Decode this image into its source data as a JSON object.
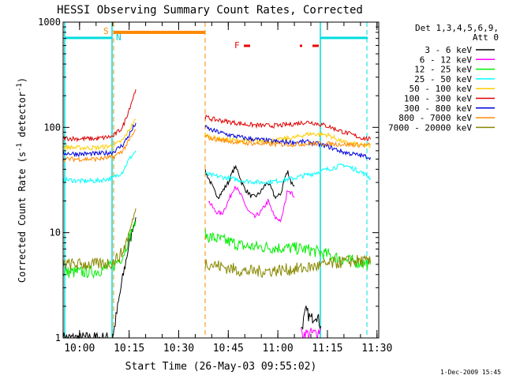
{
  "chart_data": {
    "type": "line",
    "title": "HESSI Observing Summary Count Rates, Corrected",
    "xlabel": "Start Time (26-May-03 09:55:02)",
    "ylabel": "Corrected Count Rate (s^-1 detector^-1)",
    "ylabel_parts": {
      "main": "Corrected Count Rate (s",
      "sup1": "-1",
      "mid": " detector",
      "sup2": "-1",
      "end": ")"
    },
    "footer": "1-Dec-2009 15:45",
    "y_scale": "log",
    "ylim": [
      1,
      1000
    ],
    "xlim_minutes": [
      0,
      35.5
    ],
    "x_tick_labels": [
      {
        "label": "10:00",
        "minutes": 4.97
      },
      {
        "label": "10:15",
        "minutes": 19.97
      },
      {
        "label": "10:30",
        "minutes": 34.97
      },
      {
        "label": "10:45",
        "minutes": 49.97
      },
      {
        "label": "11:00",
        "minutes": 64.97
      },
      {
        "label": "11:15",
        "minutes": 79.97
      },
      {
        "label": "11:30",
        "minutes": 94.97
      }
    ],
    "y_tick_labels": [
      {
        "label": "1",
        "value": 1
      },
      {
        "label": "10",
        "value": 10
      },
      {
        "label": "100",
        "value": 100
      },
      {
        "label": "1000",
        "value": 1000
      }
    ],
    "grid": false,
    "legend": {
      "placement": "right",
      "header": [
        "Det 1,3,4,5,6,9,",
        "Att 0"
      ]
    },
    "flag_labels": {
      "sunlight": "S",
      "night": "N",
      "flare": "F"
    },
    "series": [
      {
        "name": "3 - 6 keV",
        "color": "#000000",
        "segments": [
          {
            "x": [
              0,
              10,
              20,
              30,
              35,
              40,
              44
            ],
            "y": [
              1,
              1,
              1,
              1,
              3,
              8,
              14
            ]
          },
          {
            "x": [
              86,
              88,
              90,
              92,
              94,
              96,
              98,
              100,
              102,
              104,
              106,
              108,
              110,
              112,
              114,
              116,
              118,
              120,
              122,
              124,
              126,
              128,
              130,
              132,
              134,
              136,
              138,
              140
            ],
            "y": [
              38,
              33,
              28,
              24,
              22,
              24,
              27,
              30,
              36,
              42,
              38,
              30,
              26,
              24,
              22,
              22,
              23,
              25,
              28,
              30,
              26,
              22,
              22,
              24,
              33,
              38,
              30,
              28
            ]
          },
          {
            "x": [
              144,
              147,
              150,
              153,
              156
            ],
            "y": [
              1.2,
              1.8,
              1.5,
              1.7,
              1.3
            ]
          }
        ]
      },
      {
        "name": "6 - 12 keV",
        "color": "#ff00ff",
        "segments": [
          {
            "x": [
              88,
              92,
              96,
              100,
              104,
              108,
              112,
              116,
              120,
              124,
              128,
              132,
              136,
              140
            ],
            "y": [
              20,
              16,
              15,
              20,
              28,
              22,
              16,
              14,
              16,
              20,
              14,
              13,
              26,
              22
            ]
          },
          {
            "x": [
              144,
              152,
              156
            ],
            "y": [
              1.1,
              1.1,
              1.2
            ]
          }
        ]
      },
      {
        "name": "12 - 25 keV",
        "color": "#00ee00",
        "segments": [
          {
            "x": [
              0,
              10,
              20,
              30,
              36,
              40,
              44
            ],
            "y": [
              4.2,
              4.2,
              4.3,
              4.8,
              6,
              9,
              13
            ]
          },
          {
            "x": [
              86,
              90,
              100,
              110,
              120,
              130,
              140,
              145,
              150,
              160,
              170,
              180,
              186
            ],
            "y": [
              9.5,
              9,
              8.2,
              7.4,
              7.3,
              7.2,
              7.1,
              7,
              6.8,
              6.2,
              5.5,
              5.2,
              5
            ]
          }
        ]
      },
      {
        "name": "25 - 50 keV",
        "color": "#00ffff",
        "segments": [
          {
            "x": [
              0,
              10,
              20,
              30,
              36,
              40,
              44
            ],
            "y": [
              32,
              31,
              31,
              33,
              38,
              50,
              60
            ]
          },
          {
            "x": [
              86,
              90,
              100,
              110,
              120,
              130,
              140,
              146,
              150,
              160,
              170,
              180,
              186
            ],
            "y": [
              36,
              35,
              33,
              31,
              30,
              31,
              33,
              35,
              36,
              40,
              44,
              38,
              33
            ]
          }
        ]
      },
      {
        "name": "50 - 100 keV",
        "color": "#ffcc00",
        "segments": [
          {
            "x": [
              0,
              10,
              20,
              30,
              36,
              40,
              44
            ],
            "y": [
              65,
              64,
              64,
              67,
              75,
              95,
              120
            ]
          },
          {
            "x": [
              86,
              90,
              100,
              110,
              120,
              130,
              140,
              146,
              150,
              160,
              170,
              180,
              186
            ],
            "y": [
              85,
              80,
              76,
              74,
              74,
              76,
              80,
              85,
              87,
              85,
              72,
              68,
              66
            ]
          }
        ]
      },
      {
        "name": "100 - 300 keV",
        "color": "#dd0000",
        "segments": [
          {
            "x": [
              0,
              10,
              20,
              30,
              36,
              40,
              44
            ],
            "y": [
              79,
              78,
              78,
              82,
              100,
              150,
              230
            ]
          },
          {
            "x": [
              86,
              90,
              100,
              110,
              120,
              130,
              140,
              146,
              150,
              160,
              170,
              180,
              186
            ],
            "y": [
              125,
              120,
              113,
              107,
              104,
              104,
              108,
              112,
              112,
              103,
              90,
              80,
              77
            ]
          }
        ]
      },
      {
        "name": "300 - 800 keV",
        "color": "#0000dd",
        "segments": [
          {
            "x": [
              0,
              10,
              20,
              30,
              36,
              40,
              44
            ],
            "y": [
              57,
              56,
              56,
              58,
              68,
              85,
              110
            ]
          },
          {
            "x": [
              86,
              90,
              100,
              110,
              120,
              130,
              140,
              146,
              150,
              160,
              170,
              180,
              186
            ],
            "y": [
              100,
              94,
              85,
              79,
              76,
              73,
              72,
              73,
              72,
              66,
              58,
              54,
              52
            ]
          }
        ]
      },
      {
        "name": "800 - 7000 keV",
        "color": "#ff8800",
        "segments": [
          {
            "x": [
              0,
              10,
              20,
              30,
              36,
              40,
              44
            ],
            "y": [
              50,
              50,
              50,
              52,
              60,
              75,
              95
            ]
          },
          {
            "x": [
              86,
              90,
              100,
              110,
              120,
              130,
              140,
              146,
              150,
              160,
              170,
              180,
              186
            ],
            "y": [
              82,
              78,
              74,
              71,
              70,
              69,
              69,
              70,
              70,
              70,
              69,
              68,
              68
            ]
          }
        ]
      },
      {
        "name": "7000 - 20000 keV",
        "color": "#888800",
        "segments": [
          {
            "x": [
              0,
              10,
              20,
              30,
              36,
              40,
              44
            ],
            "y": [
              5,
              5,
              5,
              5.2,
              6.5,
              10,
              17
            ]
          },
          {
            "x": [
              86,
              90,
              100,
              110,
              120,
              130,
              140,
              146,
              150,
              160,
              170,
              180,
              186
            ],
            "y": [
              5.2,
              5,
              4.6,
              4.3,
              4.3,
              4.4,
              4.5,
              4.6,
              4.7,
              5,
              5.3,
              5.4,
              5.2
            ]
          }
        ]
      }
    ]
  }
}
